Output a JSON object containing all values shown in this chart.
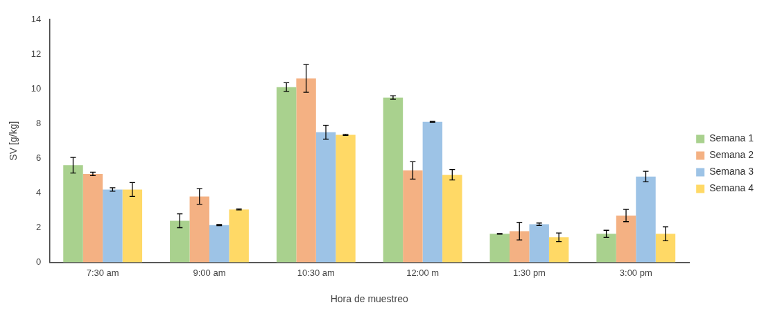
{
  "chart_data": {
    "type": "bar",
    "xlabel": "Hora de muestreo",
    "ylabel": "SV [g/kg]",
    "categories": [
      "7:30 am",
      "9:00 am",
      "10:30 am",
      "12:00 m",
      "1:30 pm",
      "3:00 pm"
    ],
    "series": [
      {
        "name": "Semana 1",
        "color": "#a9d18e",
        "values": [
          5.6,
          2.4,
          10.1,
          9.5,
          1.65,
          1.65
        ],
        "errors": [
          0.45,
          0.4,
          0.25,
          0.1,
          0.02,
          0.2
        ]
      },
      {
        "name": "Semana 2",
        "color": "#f4b183",
        "values": [
          5.1,
          3.8,
          10.6,
          5.3,
          1.8,
          2.7
        ],
        "errors": [
          0.1,
          0.45,
          0.8,
          0.5,
          0.5,
          0.35
        ]
      },
      {
        "name": "Semana 3",
        "color": "#9dc3e6",
        "values": [
          4.2,
          2.15,
          7.5,
          8.1,
          2.2,
          4.95
        ],
        "errors": [
          0.1,
          0.03,
          0.4,
          0.02,
          0.07,
          0.3
        ]
      },
      {
        "name": "Semana 4",
        "color": "#ffd966",
        "values": [
          4.2,
          3.05,
          7.35,
          5.05,
          1.45,
          1.65
        ],
        "errors": [
          0.4,
          0.03,
          0.03,
          0.3,
          0.25,
          0.4
        ]
      }
    ],
    "ylim": [
      0,
      14
    ],
    "yticks": [
      0,
      2,
      4,
      6,
      8,
      10,
      12,
      14
    ],
    "grid": false,
    "legend": "right"
  }
}
